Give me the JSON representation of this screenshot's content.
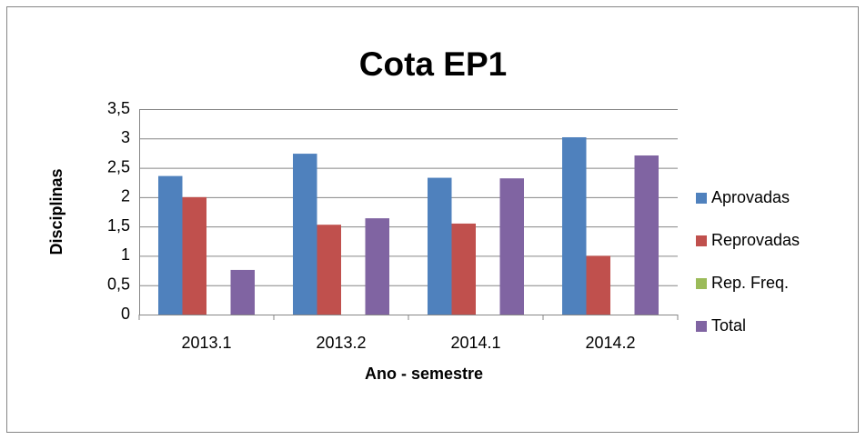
{
  "chart_data": {
    "type": "bar",
    "title": "Cota EP1",
    "x_label": "Ano - semestre",
    "y_label": "Disciplinas",
    "categories": [
      "2013.1",
      "2013.2",
      "2014.1",
      "2014.2"
    ],
    "series": [
      {
        "name": "Aprovadas",
        "color": "#4f81bd",
        "values": [
          2.36,
          2.74,
          2.33,
          3.02
        ]
      },
      {
        "name": "Reprovadas",
        "color": "#c0504d",
        "values": [
          2.0,
          1.53,
          1.55,
          1.0
        ]
      },
      {
        "name": "Rep. Freq.",
        "color": "#9bbb59",
        "values": [
          0,
          0,
          0,
          0
        ]
      },
      {
        "name": "Total",
        "color": "#8064a2",
        "values": [
          0.76,
          1.64,
          2.32,
          2.71
        ]
      }
    ],
    "ylim": [
      0,
      3.5
    ],
    "yticks": [
      0,
      {
        "value": 0.5,
        "label": "0,5"
      },
      1,
      {
        "value": 1.5,
        "label": "1,5"
      },
      2,
      {
        "value": 2.5,
        "label": "2,5"
      },
      3,
      {
        "value": 3.5,
        "label": "3,5"
      }
    ],
    "grid": true,
    "legend": "right"
  }
}
